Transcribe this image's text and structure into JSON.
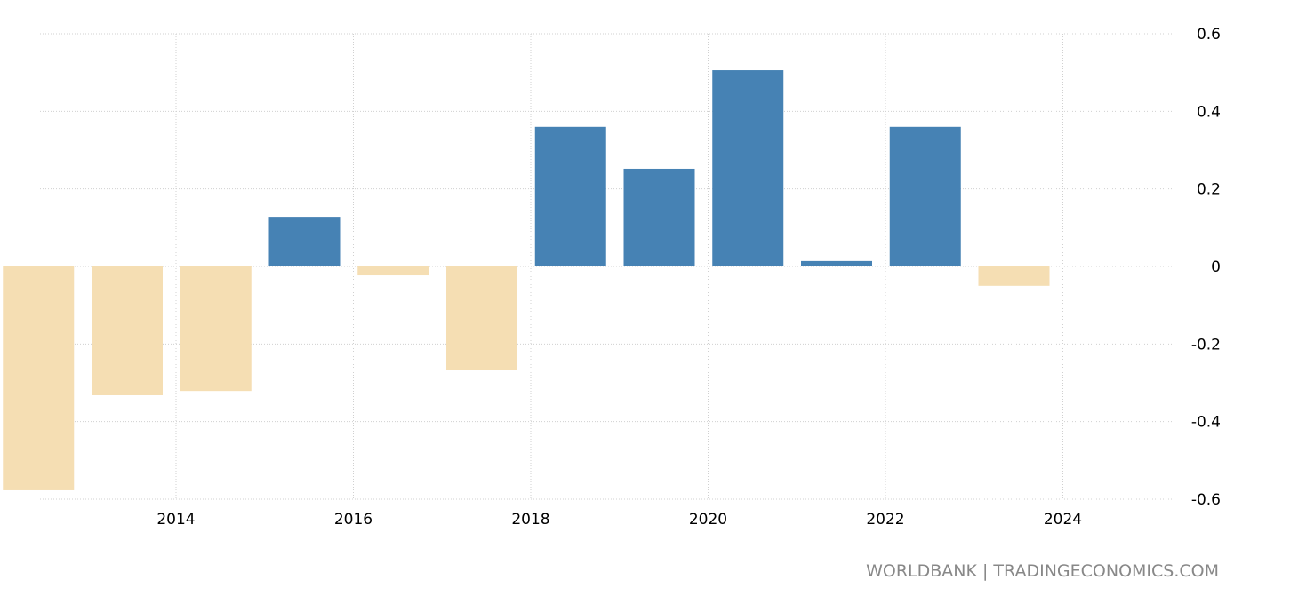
{
  "chart_data": {
    "type": "bar",
    "categories": [
      "2013",
      "2014",
      "2015",
      "2016",
      "2017",
      "2018",
      "2019",
      "2020",
      "2021",
      "2022",
      "2023",
      "2024"
    ],
    "values": [
      -0.577,
      -0.332,
      -0.321,
      0.128,
      -0.023,
      -0.266,
      0.36,
      0.252,
      0.506,
      0.014,
      0.36,
      -0.05
    ],
    "ylim": [
      -0.6,
      0.6
    ],
    "y_ticks": [
      "0.6",
      "0.4",
      "0.2",
      "0",
      "-0.2",
      "-0.4",
      "-0.6"
    ],
    "x_ticks": [
      "2014",
      "2016",
      "2018",
      "2020",
      "2022",
      "2024"
    ],
    "grid": true,
    "colors": {
      "positive": "#4682b4",
      "negative": "#f5deb3"
    }
  },
  "credit": "WORLDBANK | TRADINGECONOMICS.COM"
}
